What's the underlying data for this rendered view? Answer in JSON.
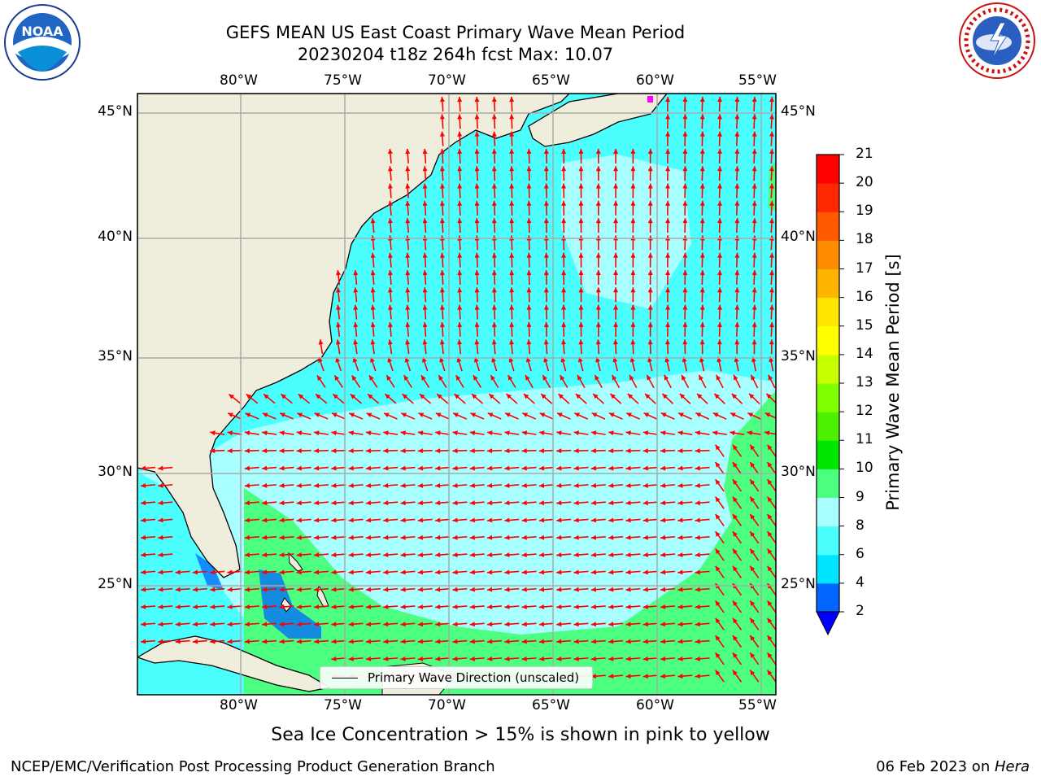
{
  "title": {
    "line1": "GEFS MEAN US East Coast Primary Wave Mean Period",
    "line2": "20230204 t18z 264h fcst   Max: 10.07"
  },
  "axes": {
    "lon_ticks": [
      "80°W",
      "75°W",
      "70°W",
      "65°W",
      "60°W",
      "55°W"
    ],
    "lat_ticks": [
      "45°N",
      "40°N",
      "35°N",
      "30°N",
      "25°N"
    ]
  },
  "legend": {
    "label": "Primary Wave Direction (unscaled)"
  },
  "colorbar": {
    "title": "Primary Wave Mean Period [s]",
    "ticks": [
      "2",
      "4",
      "6",
      "8",
      "9",
      "10",
      "11",
      "12",
      "13",
      "14",
      "15",
      "16",
      "17",
      "18",
      "19",
      "20",
      "21"
    ],
    "colors": [
      "#0066ff",
      "#00e5ff",
      "#4cffff",
      "#a8ffff",
      "#4cff80",
      "#00e600",
      "#4cf000",
      "#80ff00",
      "#c8ff00",
      "#ffff00",
      "#ffe600",
      "#ffb400",
      "#ff8c00",
      "#ff5a00",
      "#ff2800",
      "#ff0000"
    ]
  },
  "note": "Sea Ice Concentration > 15% is shown in pink to yellow",
  "footer": {
    "left": "NCEP/EMC/Verification Post Processing Product Generation Branch",
    "right_date": "06 Feb 2023 on ",
    "right_host": "Hera"
  },
  "logos": {
    "left": "noara-logo",
    "right": "nws-logo",
    "left_text": "NOAA",
    "right_text": "NATIONAL WEATHER SERVICE"
  },
  "colors": {
    "land": "#efeddc",
    "arrow": "#ff0000",
    "grid": "#aaaaaa"
  }
}
